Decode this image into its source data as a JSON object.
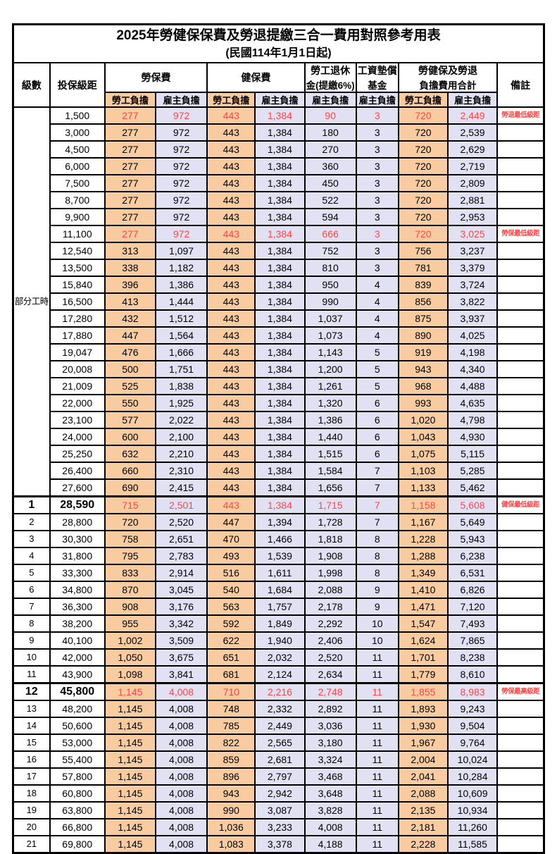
{
  "title": "2025年勞健保保費及勞退提繳三合一費用對照參考用表",
  "subtitle": "(民國114年1月1日起)",
  "header": {
    "level": "級數",
    "bracket": "投保級距",
    "labor_ins": "勞保費",
    "health_ins": "健保費",
    "pension_line1": "勞工退休",
    "pension_line2": "金(提繳6%)",
    "wage_fund_line1": "工資墊償",
    "wage_fund_line2": "基金",
    "total_line1": "勞健保及勞退",
    "total_line2": "負擔費用合計",
    "remark": "備註",
    "employee_share": "勞工負擔",
    "employer_share": "雇主負擔"
  },
  "part_time_label": "部分工時",
  "part_time_rowspan": 23,
  "colors": {
    "employee_fill": "#F9CBA0",
    "employer_fill": "#E2E1F4",
    "highlight_red": "#FF4545",
    "border": "#000000"
  },
  "rows": [
    {
      "level": null,
      "bracket": "1,500",
      "li_emp": "277",
      "li_er": "972",
      "hi_emp": "443",
      "hi_er": "1,384",
      "pension": "90",
      "fund": "3",
      "tot_emp": "720",
      "tot_er": "2,449",
      "remark": "勞退最低級距",
      "red": true,
      "bold": false
    },
    {
      "level": null,
      "bracket": "3,000",
      "li_emp": "277",
      "li_er": "972",
      "hi_emp": "443",
      "hi_er": "1,384",
      "pension": "180",
      "fund": "3",
      "tot_emp": "720",
      "tot_er": "2,539",
      "remark": "",
      "red": false,
      "bold": false
    },
    {
      "level": null,
      "bracket": "4,500",
      "li_emp": "277",
      "li_er": "972",
      "hi_emp": "443",
      "hi_er": "1,384",
      "pension": "270",
      "fund": "3",
      "tot_emp": "720",
      "tot_er": "2,629",
      "remark": "",
      "red": false,
      "bold": false
    },
    {
      "level": null,
      "bracket": "6,000",
      "li_emp": "277",
      "li_er": "972",
      "hi_emp": "443",
      "hi_er": "1,384",
      "pension": "360",
      "fund": "3",
      "tot_emp": "720",
      "tot_er": "2,719",
      "remark": "",
      "red": false,
      "bold": false
    },
    {
      "level": null,
      "bracket": "7,500",
      "li_emp": "277",
      "li_er": "972",
      "hi_emp": "443",
      "hi_er": "1,384",
      "pension": "450",
      "fund": "3",
      "tot_emp": "720",
      "tot_er": "2,809",
      "remark": "",
      "red": false,
      "bold": false
    },
    {
      "level": null,
      "bracket": "8,700",
      "li_emp": "277",
      "li_er": "972",
      "hi_emp": "443",
      "hi_er": "1,384",
      "pension": "522",
      "fund": "3",
      "tot_emp": "720",
      "tot_er": "2,881",
      "remark": "",
      "red": false,
      "bold": false
    },
    {
      "level": null,
      "bracket": "9,900",
      "li_emp": "277",
      "li_er": "972",
      "hi_emp": "443",
      "hi_er": "1,384",
      "pension": "594",
      "fund": "3",
      "tot_emp": "720",
      "tot_er": "2,953",
      "remark": "",
      "red": false,
      "bold": false
    },
    {
      "level": null,
      "bracket": "11,100",
      "li_emp": "277",
      "li_er": "972",
      "hi_emp": "443",
      "hi_er": "1,384",
      "pension": "666",
      "fund": "3",
      "tot_emp": "720",
      "tot_er": "3,025",
      "remark": "勞保最低級距",
      "red": true,
      "bold": false
    },
    {
      "level": null,
      "bracket": "12,540",
      "li_emp": "313",
      "li_er": "1,097",
      "hi_emp": "443",
      "hi_er": "1,384",
      "pension": "752",
      "fund": "3",
      "tot_emp": "756",
      "tot_er": "3,237",
      "remark": "",
      "red": false,
      "bold": false
    },
    {
      "level": null,
      "bracket": "13,500",
      "li_emp": "338",
      "li_er": "1,182",
      "hi_emp": "443",
      "hi_er": "1,384",
      "pension": "810",
      "fund": "3",
      "tot_emp": "781",
      "tot_er": "3,379",
      "remark": "",
      "red": false,
      "bold": false
    },
    {
      "level": null,
      "bracket": "15,840",
      "li_emp": "396",
      "li_er": "1,386",
      "hi_emp": "443",
      "hi_er": "1,384",
      "pension": "950",
      "fund": "4",
      "tot_emp": "839",
      "tot_er": "3,724",
      "remark": "",
      "red": false,
      "bold": false
    },
    {
      "level": null,
      "bracket": "16,500",
      "li_emp": "413",
      "li_er": "1,444",
      "hi_emp": "443",
      "hi_er": "1,384",
      "pension": "990",
      "fund": "4",
      "tot_emp": "856",
      "tot_er": "3,822",
      "remark": "",
      "red": false,
      "bold": false
    },
    {
      "level": null,
      "bracket": "17,280",
      "li_emp": "432",
      "li_er": "1,512",
      "hi_emp": "443",
      "hi_er": "1,384",
      "pension": "1,037",
      "fund": "4",
      "tot_emp": "875",
      "tot_er": "3,937",
      "remark": "",
      "red": false,
      "bold": false
    },
    {
      "level": null,
      "bracket": "17,880",
      "li_emp": "447",
      "li_er": "1,564",
      "hi_emp": "443",
      "hi_er": "1,384",
      "pension": "1,073",
      "fund": "4",
      "tot_emp": "890",
      "tot_er": "4,025",
      "remark": "",
      "red": false,
      "bold": false
    },
    {
      "level": null,
      "bracket": "19,047",
      "li_emp": "476",
      "li_er": "1,666",
      "hi_emp": "443",
      "hi_er": "1,384",
      "pension": "1,143",
      "fund": "5",
      "tot_emp": "919",
      "tot_er": "4,198",
      "remark": "",
      "red": false,
      "bold": false
    },
    {
      "level": null,
      "bracket": "20,008",
      "li_emp": "500",
      "li_er": "1,751",
      "hi_emp": "443",
      "hi_er": "1,384",
      "pension": "1,200",
      "fund": "5",
      "tot_emp": "943",
      "tot_er": "4,340",
      "remark": "",
      "red": false,
      "bold": false
    },
    {
      "level": null,
      "bracket": "21,009",
      "li_emp": "525",
      "li_er": "1,838",
      "hi_emp": "443",
      "hi_er": "1,384",
      "pension": "1,261",
      "fund": "5",
      "tot_emp": "968",
      "tot_er": "4,488",
      "remark": "",
      "red": false,
      "bold": false
    },
    {
      "level": null,
      "bracket": "22,000",
      "li_emp": "550",
      "li_er": "1,925",
      "hi_emp": "443",
      "hi_er": "1,384",
      "pension": "1,320",
      "fund": "6",
      "tot_emp": "993",
      "tot_er": "4,635",
      "remark": "",
      "red": false,
      "bold": false
    },
    {
      "level": null,
      "bracket": "23,100",
      "li_emp": "577",
      "li_er": "2,022",
      "hi_emp": "443",
      "hi_er": "1,384",
      "pension": "1,386",
      "fund": "6",
      "tot_emp": "1,020",
      "tot_er": "4,798",
      "remark": "",
      "red": false,
      "bold": false
    },
    {
      "level": null,
      "bracket": "24,000",
      "li_emp": "600",
      "li_er": "2,100",
      "hi_emp": "443",
      "hi_er": "1,384",
      "pension": "1,440",
      "fund": "6",
      "tot_emp": "1,043",
      "tot_er": "4,930",
      "remark": "",
      "red": false,
      "bold": false
    },
    {
      "level": null,
      "bracket": "25,250",
      "li_emp": "632",
      "li_er": "2,210",
      "hi_emp": "443",
      "hi_er": "1,384",
      "pension": "1,515",
      "fund": "6",
      "tot_emp": "1,075",
      "tot_er": "5,115",
      "remark": "",
      "red": false,
      "bold": false
    },
    {
      "level": null,
      "bracket": "26,400",
      "li_emp": "660",
      "li_er": "2,310",
      "hi_emp": "443",
      "hi_er": "1,384",
      "pension": "1,584",
      "fund": "7",
      "tot_emp": "1,103",
      "tot_er": "5,285",
      "remark": "",
      "red": false,
      "bold": false
    },
    {
      "level": null,
      "bracket": "27,600",
      "li_emp": "690",
      "li_er": "2,415",
      "hi_emp": "443",
      "hi_er": "1,384",
      "pension": "1,656",
      "fund": "7",
      "tot_emp": "1,133",
      "tot_er": "5,462",
      "remark": "",
      "red": false,
      "bold": false
    },
    {
      "level": "1",
      "bracket": "28,590",
      "li_emp": "715",
      "li_er": "2,501",
      "hi_emp": "443",
      "hi_er": "1,384",
      "pension": "1,715",
      "fund": "7",
      "tot_emp": "1,158",
      "tot_er": "5,608",
      "remark": "健保最低級距",
      "red": true,
      "bold": true
    },
    {
      "level": "2",
      "bracket": "28,800",
      "li_emp": "720",
      "li_er": "2,520",
      "hi_emp": "447",
      "hi_er": "1,394",
      "pension": "1,728",
      "fund": "7",
      "tot_emp": "1,167",
      "tot_er": "5,649",
      "remark": "",
      "red": false,
      "bold": false
    },
    {
      "level": "3",
      "bracket": "30,300",
      "li_emp": "758",
      "li_er": "2,651",
      "hi_emp": "470",
      "hi_er": "1,466",
      "pension": "1,818",
      "fund": "8",
      "tot_emp": "1,228",
      "tot_er": "5,943",
      "remark": "",
      "red": false,
      "bold": false
    },
    {
      "level": "4",
      "bracket": "31,800",
      "li_emp": "795",
      "li_er": "2,783",
      "hi_emp": "493",
      "hi_er": "1,539",
      "pension": "1,908",
      "fund": "8",
      "tot_emp": "1,288",
      "tot_er": "6,238",
      "remark": "",
      "red": false,
      "bold": false
    },
    {
      "level": "5",
      "bracket": "33,300",
      "li_emp": "833",
      "li_er": "2,914",
      "hi_emp": "516",
      "hi_er": "1,611",
      "pension": "1,998",
      "fund": "8",
      "tot_emp": "1,349",
      "tot_er": "6,531",
      "remark": "",
      "red": false,
      "bold": false
    },
    {
      "level": "6",
      "bracket": "34,800",
      "li_emp": "870",
      "li_er": "3,045",
      "hi_emp": "540",
      "hi_er": "1,684",
      "pension": "2,088",
      "fund": "9",
      "tot_emp": "1,410",
      "tot_er": "6,826",
      "remark": "",
      "red": false,
      "bold": false
    },
    {
      "level": "7",
      "bracket": "36,300",
      "li_emp": "908",
      "li_er": "3,176",
      "hi_emp": "563",
      "hi_er": "1,757",
      "pension": "2,178",
      "fund": "9",
      "tot_emp": "1,471",
      "tot_er": "7,120",
      "remark": "",
      "red": false,
      "bold": false
    },
    {
      "level": "8",
      "bracket": "38,200",
      "li_emp": "955",
      "li_er": "3,342",
      "hi_emp": "592",
      "hi_er": "1,849",
      "pension": "2,292",
      "fund": "10",
      "tot_emp": "1,547",
      "tot_er": "7,493",
      "remark": "",
      "red": false,
      "bold": false
    },
    {
      "level": "9",
      "bracket": "40,100",
      "li_emp": "1,002",
      "li_er": "3,509",
      "hi_emp": "622",
      "hi_er": "1,940",
      "pension": "2,406",
      "fund": "10",
      "tot_emp": "1,624",
      "tot_er": "7,865",
      "remark": "",
      "red": false,
      "bold": false
    },
    {
      "level": "10",
      "bracket": "42,000",
      "li_emp": "1,050",
      "li_er": "3,675",
      "hi_emp": "651",
      "hi_er": "2,032",
      "pension": "2,520",
      "fund": "11",
      "tot_emp": "1,701",
      "tot_er": "8,238",
      "remark": "",
      "red": false,
      "bold": false
    },
    {
      "level": "11",
      "bracket": "43,900",
      "li_emp": "1,098",
      "li_er": "3,841",
      "hi_emp": "681",
      "hi_er": "2,124",
      "pension": "2,634",
      "fund": "11",
      "tot_emp": "1,779",
      "tot_er": "8,610",
      "remark": "",
      "red": false,
      "bold": false
    },
    {
      "level": "12",
      "bracket": "45,800",
      "li_emp": "1,145",
      "li_er": "4,008",
      "hi_emp": "710",
      "hi_er": "2,216",
      "pension": "2,748",
      "fund": "11",
      "tot_emp": "1,855",
      "tot_er": "8,983",
      "remark": "勞保最高級距",
      "red": true,
      "bold": true
    },
    {
      "level": "13",
      "bracket": "48,200",
      "li_emp": "1,145",
      "li_er": "4,008",
      "hi_emp": "748",
      "hi_er": "2,332",
      "pension": "2,892",
      "fund": "11",
      "tot_emp": "1,893",
      "tot_er": "9,243",
      "remark": "",
      "red": false,
      "bold": false
    },
    {
      "level": "14",
      "bracket": "50,600",
      "li_emp": "1,145",
      "li_er": "4,008",
      "hi_emp": "785",
      "hi_er": "2,449",
      "pension": "3,036",
      "fund": "11",
      "tot_emp": "1,930",
      "tot_er": "9,504",
      "remark": "",
      "red": false,
      "bold": false
    },
    {
      "level": "15",
      "bracket": "53,000",
      "li_emp": "1,145",
      "li_er": "4,008",
      "hi_emp": "822",
      "hi_er": "2,565",
      "pension": "3,180",
      "fund": "11",
      "tot_emp": "1,967",
      "tot_er": "9,764",
      "remark": "",
      "red": false,
      "bold": false
    },
    {
      "level": "16",
      "bracket": "55,400",
      "li_emp": "1,145",
      "li_er": "4,008",
      "hi_emp": "859",
      "hi_er": "2,681",
      "pension": "3,324",
      "fund": "11",
      "tot_emp": "2,004",
      "tot_er": "10,024",
      "remark": "",
      "red": false,
      "bold": false
    },
    {
      "level": "17",
      "bracket": "57,800",
      "li_emp": "1,145",
      "li_er": "4,008",
      "hi_emp": "896",
      "hi_er": "2,797",
      "pension": "3,468",
      "fund": "11",
      "tot_emp": "2,041",
      "tot_er": "10,284",
      "remark": "",
      "red": false,
      "bold": false
    },
    {
      "level": "18",
      "bracket": "60,800",
      "li_emp": "1,145",
      "li_er": "4,008",
      "hi_emp": "943",
      "hi_er": "2,942",
      "pension": "3,648",
      "fund": "11",
      "tot_emp": "2,088",
      "tot_er": "10,609",
      "remark": "",
      "red": false,
      "bold": false
    },
    {
      "level": "19",
      "bracket": "63,800",
      "li_emp": "1,145",
      "li_er": "4,008",
      "hi_emp": "990",
      "hi_er": "3,087",
      "pension": "3,828",
      "fund": "11",
      "tot_emp": "2,135",
      "tot_er": "10,934",
      "remark": "",
      "red": false,
      "bold": false
    },
    {
      "level": "20",
      "bracket": "66,800",
      "li_emp": "1,145",
      "li_er": "4,008",
      "hi_emp": "1,036",
      "hi_er": "3,233",
      "pension": "4,008",
      "fund": "11",
      "tot_emp": "2,181",
      "tot_er": "11,260",
      "remark": "",
      "red": false,
      "bold": false
    },
    {
      "level": "21",
      "bracket": "69,800",
      "li_emp": "1,145",
      "li_er": "4,008",
      "hi_emp": "1,083",
      "hi_er": "3,378",
      "pension": "4,188",
      "fund": "11",
      "tot_emp": "2,228",
      "tot_er": "11,585",
      "remark": "",
      "red": false,
      "bold": false
    }
  ]
}
